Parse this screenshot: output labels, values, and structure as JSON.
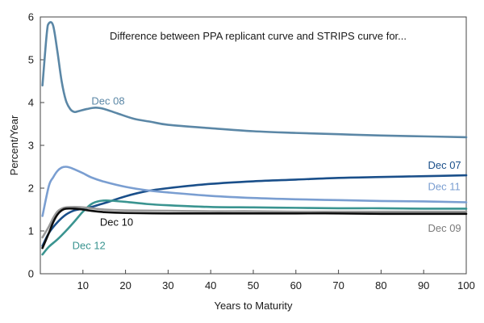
{
  "chart_data": {
    "type": "line",
    "title": "Difference between PPA replicant curve and STRIPS curve for...",
    "xlabel": "Years to Maturity",
    "ylabel": "Percent/Year",
    "xlim": [
      0,
      100
    ],
    "ylim": [
      0,
      6
    ],
    "xticks": [
      10,
      20,
      30,
      40,
      50,
      60,
      70,
      80,
      90,
      100
    ],
    "yticks": [
      0,
      1,
      2,
      3,
      4,
      5,
      6
    ],
    "grid": false,
    "series": [
      {
        "name": "Dec 08",
        "color": "#5b87a6",
        "points": [
          [
            0.5,
            4.4
          ],
          [
            1.5,
            5.6
          ],
          [
            2,
            5.85
          ],
          [
            3,
            5.8
          ],
          [
            4,
            5.2
          ],
          [
            5,
            4.5
          ],
          [
            6,
            4.05
          ],
          [
            7,
            3.85
          ],
          [
            8,
            3.78
          ],
          [
            9,
            3.8
          ],
          [
            11,
            3.85
          ],
          [
            13,
            3.88
          ],
          [
            15,
            3.85
          ],
          [
            18,
            3.75
          ],
          [
            22,
            3.62
          ],
          [
            26,
            3.55
          ],
          [
            30,
            3.48
          ],
          [
            40,
            3.4
          ],
          [
            50,
            3.33
          ],
          [
            60,
            3.29
          ],
          [
            70,
            3.26
          ],
          [
            80,
            3.23
          ],
          [
            90,
            3.21
          ],
          [
            100,
            3.19
          ]
        ]
      },
      {
        "name": "Dec 07",
        "color": "#1a4f8a",
        "points": [
          [
            0.5,
            0.65
          ],
          [
            2,
            0.95
          ],
          [
            4,
            1.2
          ],
          [
            6,
            1.38
          ],
          [
            8,
            1.48
          ],
          [
            10,
            1.52
          ],
          [
            12,
            1.56
          ],
          [
            14,
            1.62
          ],
          [
            16,
            1.68
          ],
          [
            20,
            1.81
          ],
          [
            25,
            1.93
          ],
          [
            30,
            2.0
          ],
          [
            40,
            2.1
          ],
          [
            50,
            2.16
          ],
          [
            60,
            2.2
          ],
          [
            70,
            2.24
          ],
          [
            80,
            2.26
          ],
          [
            90,
            2.28
          ],
          [
            100,
            2.3
          ]
        ]
      },
      {
        "name": "Dec 11",
        "color": "#7a9ed1",
        "points": [
          [
            0.5,
            1.35
          ],
          [
            2,
            2.05
          ],
          [
            3,
            2.25
          ],
          [
            4,
            2.4
          ],
          [
            5,
            2.48
          ],
          [
            6,
            2.5
          ],
          [
            7,
            2.48
          ],
          [
            8,
            2.44
          ],
          [
            10,
            2.35
          ],
          [
            12,
            2.25
          ],
          [
            15,
            2.15
          ],
          [
            20,
            2.03
          ],
          [
            25,
            1.95
          ],
          [
            30,
            1.9
          ],
          [
            40,
            1.82
          ],
          [
            50,
            1.77
          ],
          [
            60,
            1.74
          ],
          [
            70,
            1.72
          ],
          [
            80,
            1.7
          ],
          [
            90,
            1.69
          ],
          [
            100,
            1.67
          ]
        ]
      },
      {
        "name": "Dec 12",
        "color": "#3a9490",
        "points": [
          [
            0.5,
            0.45
          ],
          [
            2,
            0.63
          ],
          [
            4,
            0.8
          ],
          [
            6,
            1.0
          ],
          [
            8,
            1.22
          ],
          [
            10,
            1.45
          ],
          [
            12,
            1.63
          ],
          [
            14,
            1.7
          ],
          [
            16,
            1.71
          ],
          [
            20,
            1.68
          ],
          [
            25,
            1.63
          ],
          [
            30,
            1.6
          ],
          [
            40,
            1.56
          ],
          [
            50,
            1.55
          ],
          [
            60,
            1.54
          ],
          [
            70,
            1.53
          ],
          [
            80,
            1.53
          ],
          [
            90,
            1.52
          ],
          [
            100,
            1.52
          ]
        ]
      },
      {
        "name": "Dec 09",
        "color": "#999999",
        "points": [
          [
            0.5,
            0.85
          ],
          [
            2,
            1.1
          ],
          [
            3,
            1.3
          ],
          [
            4,
            1.45
          ],
          [
            5,
            1.52
          ],
          [
            6,
            1.55
          ],
          [
            8,
            1.56
          ],
          [
            10,
            1.55
          ],
          [
            12,
            1.53
          ],
          [
            15,
            1.5
          ],
          [
            20,
            1.48
          ],
          [
            30,
            1.47
          ],
          [
            40,
            1.46
          ],
          [
            50,
            1.46
          ],
          [
            60,
            1.45
          ],
          [
            70,
            1.45
          ],
          [
            80,
            1.45
          ],
          [
            90,
            1.45
          ],
          [
            100,
            1.45
          ]
        ]
      },
      {
        "name": "Dec 10",
        "color": "#0d0d0d",
        "points": [
          [
            0.5,
            0.6
          ],
          [
            2,
            0.95
          ],
          [
            3,
            1.2
          ],
          [
            4,
            1.38
          ],
          [
            5,
            1.48
          ],
          [
            6,
            1.52
          ],
          [
            8,
            1.52
          ],
          [
            10,
            1.5
          ],
          [
            12,
            1.47
          ],
          [
            15,
            1.44
          ],
          [
            20,
            1.42
          ],
          [
            30,
            1.41
          ],
          [
            40,
            1.41
          ],
          [
            50,
            1.41
          ],
          [
            60,
            1.41
          ],
          [
            70,
            1.41
          ],
          [
            80,
            1.4
          ],
          [
            90,
            1.4
          ],
          [
            100,
            1.4
          ]
        ]
      }
    ],
    "annotations": [
      {
        "text": "Dec 08",
        "x": 12,
        "y": 3.95,
        "color": "#5b87a6"
      },
      {
        "text": "Dec 07",
        "x": 91,
        "y": 2.45,
        "color": "#1a4f8a"
      },
      {
        "text": "Dec 11",
        "x": 91,
        "y": 1.95,
        "color": "#7a9ed1"
      },
      {
        "text": "Dec 10",
        "x": 14,
        "y": 1.12,
        "color": "#0d0d0d"
      },
      {
        "text": "Dec 12",
        "x": 7.5,
        "y": 0.58,
        "color": "#3a9490"
      },
      {
        "text": "Dec 09",
        "x": 91,
        "y": 0.98,
        "color": "#7a7a7a"
      }
    ]
  }
}
